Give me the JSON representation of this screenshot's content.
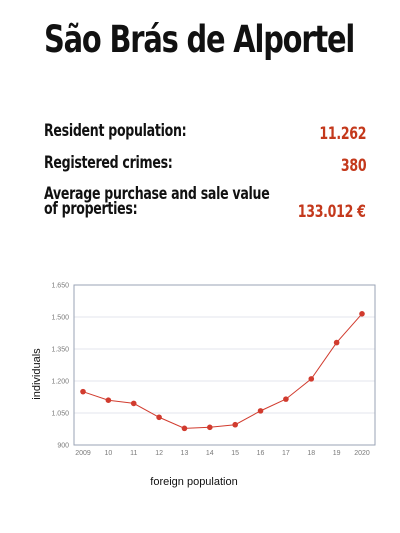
{
  "title": "São Brás de Alportel",
  "stats": {
    "resident_label": "Resident population:",
    "resident_value": "11.262",
    "crimes_label": "Registered crimes:",
    "crimes_value": "380",
    "property_label_line1": "Average purchase and sale value",
    "property_label_line2": "of properties:",
    "property_value": "133.012 €"
  },
  "colors": {
    "accent": "#c4391c",
    "line": "#d13b2e"
  },
  "chart_data": {
    "type": "line",
    "x": [
      "2009",
      "10",
      "11",
      "12",
      "13",
      "14",
      "15",
      "16",
      "17",
      "18",
      "19",
      "2020"
    ],
    "series": [
      {
        "values": [
          1150,
          1110,
          1095,
          1030,
          978,
          983,
          995,
          1060,
          1115,
          1210,
          1380,
          1515
        ]
      }
    ],
    "ylim": [
      900,
      1650
    ],
    "yticks": [
      900,
      1050,
      1200,
      1350,
      1500,
      1650
    ],
    "ytick_labels": [
      "900",
      "1.050",
      "1.200",
      "1.350",
      "1.500",
      "1.650"
    ],
    "xlabel": "foreign population",
    "ylabel": "individuals",
    "grid": true
  }
}
